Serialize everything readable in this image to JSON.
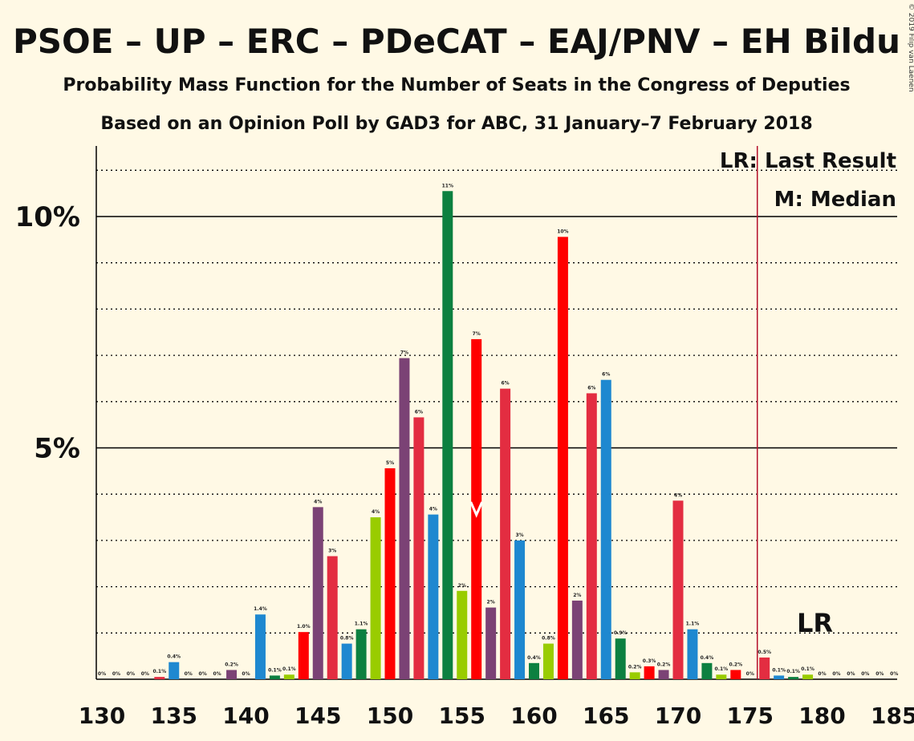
{
  "copyright": "© 2019 Filip van Laenen",
  "chart_data": {
    "type": "bar",
    "title": "PSOE – UP – ERC – PDeCAT – EAJ/PNV – EH Bildu",
    "subtitle": "Probability Mass Function for the Number of Seats in the Congress of Deputies",
    "subtitle2": "Based on an Opinion Poll by GAD3 for ABC, 31 January–7 February 2018",
    "xlabel": "",
    "ylabel": "",
    "xlim": [
      130,
      185
    ],
    "ylim": [
      0,
      11.5
    ],
    "x_ticks": [
      "130",
      "135",
      "140",
      "145",
      "150",
      "155",
      "160",
      "165",
      "170",
      "175",
      "180",
      "185"
    ],
    "y_ticks": [
      {
        "value": 5,
        "label": "5%"
      },
      {
        "value": 10,
        "label": "10%"
      }
    ],
    "legend": {
      "lr": "LR: Last Result",
      "m": "M: Median"
    },
    "last_result": {
      "seat": 176,
      "label": "LR"
    },
    "median": {
      "seat": 156
    },
    "colors": [
      "#e32d41",
      "#1e88d0",
      "#7b4275",
      "#0c8040",
      "#99cc00",
      "#ff0000"
    ],
    "bars": [
      {
        "seat": 130,
        "value": 0,
        "label": "0%",
        "color": 0
      },
      {
        "seat": 131,
        "value": 0,
        "label": "0%",
        "color": 0
      },
      {
        "seat": 132,
        "value": 0,
        "label": "0%",
        "color": 0
      },
      {
        "seat": 133,
        "value": 0,
        "label": "0%",
        "color": 0
      },
      {
        "seat": 134,
        "value": 0.05,
        "label": "0.1%",
        "color": 0
      },
      {
        "seat": 135,
        "value": 0.37,
        "label": "0.4%",
        "color": 1
      },
      {
        "seat": 136,
        "value": 0,
        "label": "0%",
        "color": 0
      },
      {
        "seat": 137,
        "value": 0,
        "label": "0%",
        "color": 0
      },
      {
        "seat": 138,
        "value": 0,
        "label": "0%",
        "color": 0
      },
      {
        "seat": 139,
        "value": 0.2,
        "label": "0.2%",
        "color": 2
      },
      {
        "seat": 140,
        "value": 0,
        "label": "0%",
        "color": 0
      },
      {
        "seat": 141,
        "value": 1.4,
        "label": "1.4%",
        "color": 1
      },
      {
        "seat": 142,
        "value": 0.08,
        "label": "0.1%",
        "color": 3
      },
      {
        "seat": 143,
        "value": 0.1,
        "label": "0.1%",
        "color": 4
      },
      {
        "seat": 144,
        "value": 1.02,
        "label": "1.0%",
        "color": 5
      },
      {
        "seat": 145,
        "value": 3.72,
        "label": "4%",
        "color": 2
      },
      {
        "seat": 146,
        "value": 2.66,
        "label": "3%",
        "color": 0
      },
      {
        "seat": 147,
        "value": 0.77,
        "label": "0.8%",
        "color": 1
      },
      {
        "seat": 148,
        "value": 1.08,
        "label": "1.1%",
        "color": 3
      },
      {
        "seat": 149,
        "value": 3.5,
        "label": "4%",
        "color": 4
      },
      {
        "seat": 150,
        "value": 4.56,
        "label": "5%",
        "color": 5
      },
      {
        "seat": 151,
        "value": 6.94,
        "label": "7%",
        "color": 2
      },
      {
        "seat": 152,
        "value": 5.66,
        "label": "6%",
        "color": 0
      },
      {
        "seat": 153,
        "value": 3.56,
        "label": "4%",
        "color": 1
      },
      {
        "seat": 154,
        "value": 10.55,
        "label": "11%",
        "color": 3
      },
      {
        "seat": 155,
        "value": 1.91,
        "label": "2%",
        "color": 4
      },
      {
        "seat": 156,
        "value": 7.35,
        "label": "7%",
        "color": 5
      },
      {
        "seat": 157,
        "value": 1.55,
        "label": "2%",
        "color": 2
      },
      {
        "seat": 158,
        "value": 6.28,
        "label": "6%",
        "color": 0
      },
      {
        "seat": 159,
        "value": 3.0,
        "label": "3%",
        "color": 1
      },
      {
        "seat": 160,
        "value": 0.35,
        "label": "0.4%",
        "color": 3
      },
      {
        "seat": 161,
        "value": 0.77,
        "label": "0.8%",
        "color": 4
      },
      {
        "seat": 162,
        "value": 9.56,
        "label": "10%",
        "color": 5
      },
      {
        "seat": 163,
        "value": 1.7,
        "label": "2%",
        "color": 2
      },
      {
        "seat": 164,
        "value": 6.18,
        "label": "6%",
        "color": 0
      },
      {
        "seat": 165,
        "value": 6.47,
        "label": "6%",
        "color": 1
      },
      {
        "seat": 166,
        "value": 0.88,
        "label": "0.9%",
        "color": 3
      },
      {
        "seat": 167,
        "value": 0.15,
        "label": "0.2%",
        "color": 4
      },
      {
        "seat": 168,
        "value": 0.28,
        "label": "0.3%",
        "color": 5
      },
      {
        "seat": 169,
        "value": 0.2,
        "label": "0.2%",
        "color": 2
      },
      {
        "seat": 170,
        "value": 3.86,
        "label": "4%",
        "color": 0
      },
      {
        "seat": 171,
        "value": 1.08,
        "label": "1.1%",
        "color": 1
      },
      {
        "seat": 172,
        "value": 0.35,
        "label": "0.4%",
        "color": 3
      },
      {
        "seat": 173,
        "value": 0.1,
        "label": "0.1%",
        "color": 4
      },
      {
        "seat": 174,
        "value": 0.2,
        "label": "0.2%",
        "color": 5
      },
      {
        "seat": 175,
        "value": 0,
        "label": "0%",
        "color": 0
      },
      {
        "seat": 176,
        "value": 0.47,
        "label": "0.5%",
        "color": 0
      },
      {
        "seat": 177,
        "value": 0.08,
        "label": "0.1%",
        "color": 1
      },
      {
        "seat": 178,
        "value": 0.05,
        "label": "0.1%",
        "color": 3
      },
      {
        "seat": 179,
        "value": 0.1,
        "label": "0.1%",
        "color": 4
      },
      {
        "seat": 180,
        "value": 0,
        "label": "0%",
        "color": 0
      },
      {
        "seat": 181,
        "value": 0,
        "label": "0%",
        "color": 0
      },
      {
        "seat": 182,
        "value": 0,
        "label": "0%",
        "color": 0
      },
      {
        "seat": 183,
        "value": 0,
        "label": "0%",
        "color": 0
      },
      {
        "seat": 184,
        "value": 0,
        "label": "0%",
        "color": 0
      },
      {
        "seat": 185,
        "value": 0,
        "label": "0%",
        "color": 0
      }
    ]
  }
}
